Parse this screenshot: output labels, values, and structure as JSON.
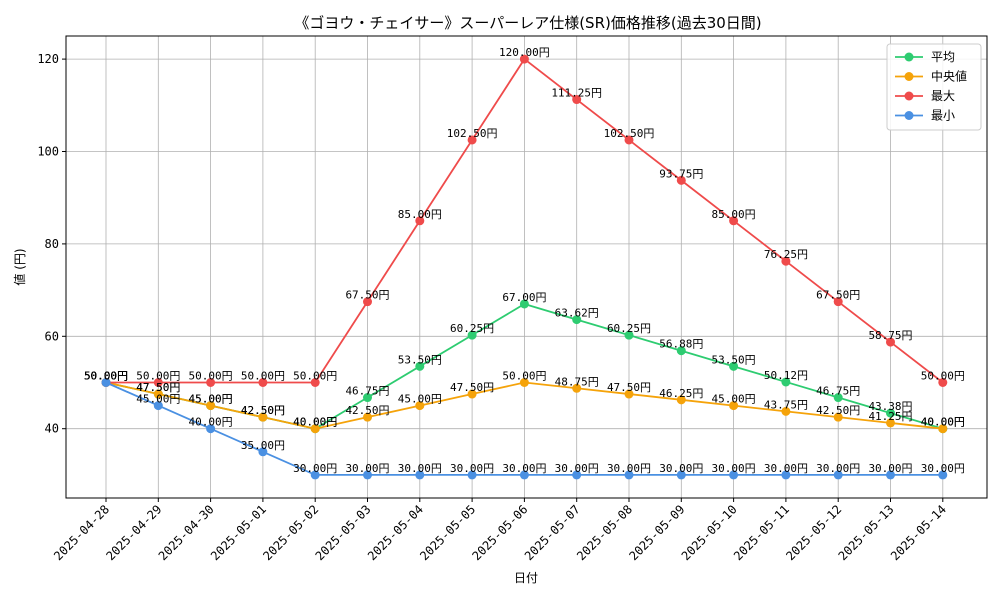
{
  "chart_data": {
    "type": "line",
    "title": "《ゴヨウ・チェイサー》スーパーレア仕様(SR)価格推移(過去30日間)",
    "xlabel": "日付",
    "ylabel": "値 (円)",
    "ylim": [
      25,
      125
    ],
    "yticks": [
      40,
      60,
      80,
      100,
      120
    ],
    "grid": true,
    "legend_position": "top-right",
    "label_suffix": "円",
    "categories": [
      "2025-04-28",
      "2025-04-29",
      "2025-04-30",
      "2025-05-01",
      "2025-05-02",
      "2025-05-03",
      "2025-05-04",
      "2025-05-05",
      "2025-05-06",
      "2025-05-07",
      "2025-05-08",
      "2025-05-09",
      "2025-05-10",
      "2025-05-11",
      "2025-05-12",
      "2025-05-13",
      "2025-05-14"
    ],
    "series": [
      {
        "name": "平均",
        "color": "#2ecc71",
        "values": [
          50.0,
          47.5,
          45.0,
          42.5,
          40.0,
          46.75,
          53.5,
          60.25,
          67.0,
          63.62,
          60.25,
          56.88,
          53.5,
          50.12,
          46.75,
          43.38,
          40.0
        ]
      },
      {
        "name": "中央値",
        "color": "#f5a30a",
        "values": [
          50.0,
          47.5,
          45.0,
          42.5,
          40.0,
          42.5,
          45.0,
          47.5,
          50.0,
          48.75,
          47.5,
          46.25,
          45.0,
          43.75,
          42.5,
          41.25,
          40.0
        ]
      },
      {
        "name": "最大",
        "color": "#ef4b4b",
        "values": [
          50.0,
          50.0,
          50.0,
          50.0,
          50.0,
          67.5,
          85.0,
          102.5,
          120.0,
          111.25,
          102.5,
          93.75,
          85.0,
          76.25,
          67.5,
          58.75,
          50.0
        ]
      },
      {
        "name": "最小",
        "color": "#4a90e2",
        "values": [
          50.0,
          45.0,
          40.0,
          35.0,
          30.0,
          30.0,
          30.0,
          30.0,
          30.0,
          30.0,
          30.0,
          30.0,
          30.0,
          30.0,
          30.0,
          30.0,
          30.0
        ]
      }
    ]
  }
}
